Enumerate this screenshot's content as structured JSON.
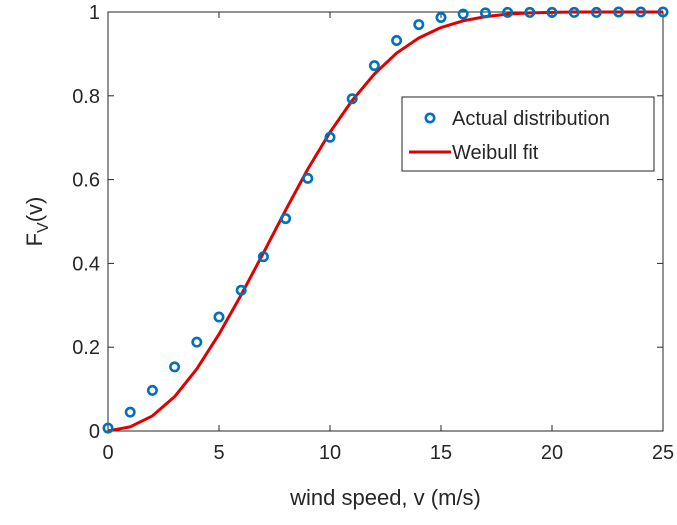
{
  "chart_data": {
    "type": "line",
    "xlabel": "wind speed, v (m/s)",
    "ylabel": {
      "main": "F",
      "sub": "V",
      "rest": "(v)"
    },
    "xlim": [
      0,
      25
    ],
    "ylim": [
      0,
      1
    ],
    "xticks": [
      0,
      5,
      10,
      15,
      20,
      25
    ],
    "yticks": [
      0,
      0.2,
      0.4,
      0.6,
      0.8,
      1
    ],
    "xtick_labels": [
      "0",
      "5",
      "10",
      "15",
      "20",
      "25"
    ],
    "ytick_labels": [
      "0",
      "0.2",
      "0.4",
      "0.6",
      "0.8",
      "1"
    ],
    "grid": false,
    "legend_position": "upper-right",
    "series": [
      {
        "name": "Actual distribution",
        "kind": "markers",
        "color": "#0072BD",
        "x": [
          0,
          1,
          2,
          3,
          4,
          5,
          6,
          7,
          8,
          9,
          10,
          11,
          12,
          13,
          14,
          15,
          16,
          17,
          18,
          19,
          20,
          21,
          22,
          23,
          24,
          25
        ],
        "y": [
          0.007,
          0.045,
          0.097,
          0.153,
          0.212,
          0.272,
          0.336,
          0.416,
          0.507,
          0.603,
          0.701,
          0.793,
          0.872,
          0.932,
          0.97,
          0.987,
          0.995,
          0.998,
          0.999,
          0.999,
          0.999,
          0.999,
          0.999,
          1.0,
          1.0,
          1.0
        ]
      },
      {
        "name": "Weibull fit",
        "kind": "line",
        "color": "#E00000",
        "x": [
          0,
          1,
          2,
          3,
          4,
          5,
          6,
          7,
          8,
          9,
          10,
          11,
          12,
          13,
          14,
          15,
          16,
          17,
          18,
          19,
          20,
          21,
          22,
          23,
          24,
          25
        ],
        "y": [
          0,
          0.01,
          0.036,
          0.082,
          0.148,
          0.231,
          0.325,
          0.425,
          0.527,
          0.625,
          0.713,
          0.789,
          0.852,
          0.902,
          0.938,
          0.963,
          0.979,
          0.989,
          0.995,
          0.998,
          0.999,
          1.0,
          1.0,
          1.0,
          1.0,
          1.0
        ]
      }
    ]
  }
}
